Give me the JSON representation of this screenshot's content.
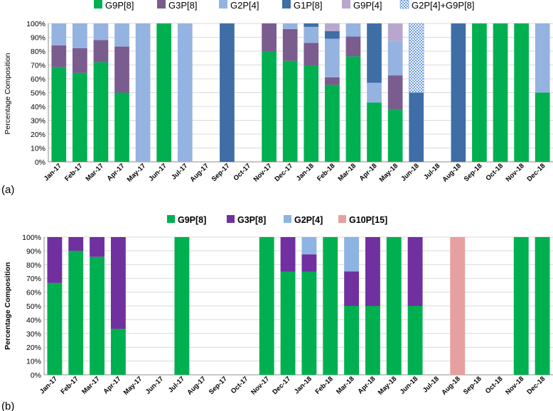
{
  "chart_data": [
    {
      "type": "bar",
      "stacked": true,
      "panel_label": "(a)",
      "title": "",
      "xlabel": "",
      "ylabel": "Percentage Composition",
      "ylim": [
        0,
        100
      ],
      "yticks": [
        "0%",
        "10%",
        "20%",
        "30%",
        "40%",
        "50%",
        "60%",
        "70%",
        "80%",
        "90%",
        "100%"
      ],
      "legend_position": "top",
      "categories": [
        "Jan-17",
        "Feb-17",
        "Mar-17",
        "Apr-17",
        "May-17",
        "Jun-17",
        "Jul-17",
        "Aug-17",
        "Sep-17",
        "Oct-17",
        "Nov-17",
        "Dec-17",
        "Jan-18",
        "Feb-18",
        "Mar-18",
        "Apr-18",
        "May-18",
        "Jun-18",
        "Jul-18",
        "Aug-18",
        "Sep-18",
        "Oct-18",
        "Nov-18",
        "Dec-18"
      ],
      "series": [
        {
          "name": "G9P[8]",
          "color": "#00b050",
          "values": [
            68.4,
            64.3,
            72,
            50,
            0,
            100,
            0,
            0,
            0,
            0,
            80,
            73,
            69.5,
            55.6,
            76.2,
            42.9,
            37.5,
            0,
            0,
            0,
            100,
            100,
            100,
            50
          ]
        },
        {
          "name": "G3P[8]",
          "color": "#7b5c8e",
          "values": [
            15.8,
            17.8,
            16,
            33.3,
            0,
            0,
            0,
            0,
            0,
            0,
            20,
            23,
            16.5,
            5.5,
            14.3,
            0,
            25,
            0,
            0,
            0,
            0,
            0,
            0,
            0
          ]
        },
        {
          "name": "G2P[4]",
          "color": "#95b3e0",
          "values": [
            15.8,
            17.9,
            12,
            16.7,
            100,
            0,
            100,
            0,
            0,
            0,
            0,
            4,
            11.5,
            27.8,
            9.5,
            14.2,
            25,
            0,
            0,
            0,
            0,
            0,
            0,
            50
          ]
        },
        {
          "name": "G1P[8]",
          "color": "#3f6ea6",
          "values": [
            0,
            0,
            0,
            0,
            0,
            0,
            0,
            0,
            100,
            0,
            0,
            0,
            2.5,
            5.6,
            0,
            42.9,
            0,
            50,
            0,
            100,
            0,
            0,
            0,
            0
          ]
        },
        {
          "name": "G9P[4]",
          "color": "#b9a6cf",
          "values": [
            0,
            0,
            0,
            0,
            0,
            0,
            0,
            0,
            0,
            0,
            0,
            0,
            0,
            5.5,
            0,
            0,
            12.5,
            0,
            0,
            0,
            0,
            0,
            0,
            0
          ]
        },
        {
          "name": "G2P[4]+G9P[8]",
          "color": "#6d9be0",
          "pattern": "checker",
          "values": [
            0,
            0,
            0,
            0,
            0,
            0,
            0,
            0,
            0,
            0,
            0,
            0,
            0,
            0,
            0,
            0,
            0,
            50,
            0,
            0,
            0,
            0,
            0,
            0
          ]
        }
      ]
    },
    {
      "type": "bar",
      "stacked": true,
      "panel_label": "(b)",
      "title": "",
      "xlabel": "",
      "ylabel": "Percentage Composition",
      "ylim": [
        0,
        100
      ],
      "yticks": [
        "0%",
        "10%",
        "20%",
        "30%",
        "40%",
        "50%",
        "60%",
        "70%",
        "80%",
        "90%",
        "100%"
      ],
      "legend_position": "top",
      "categories": [
        "Jan-17",
        "Feb-17",
        "Mar-17",
        "Apr-17",
        "May-17",
        "Jun-17",
        "Jul-17",
        "Aug-17",
        "Sep-17",
        "Oct-17",
        "Nov-17",
        "Dec-17",
        "Jan-18",
        "Feb-18",
        "Mar-18",
        "Apr-18",
        "May-18",
        "Jun-18",
        "Jul-18",
        "Aug-18",
        "Sep-18",
        "Oct-18",
        "Nov-18",
        "Dec-18"
      ],
      "series": [
        {
          "name": "G9P[8]",
          "color": "#00b050",
          "values": [
            66.7,
            90,
            85.7,
            33.3,
            0,
            0,
            100,
            0,
            0,
            0,
            100,
            75,
            75,
            100,
            50,
            50,
            100,
            50,
            0,
            0,
            0,
            0,
            100,
            100
          ]
        },
        {
          "name": "G3P[8]",
          "color": "#7030a0",
          "values": [
            33.3,
            10,
            14.3,
            66.7,
            0,
            0,
            0,
            0,
            0,
            0,
            0,
            25,
            12.5,
            0,
            25,
            50,
            0,
            50,
            0,
            0,
            0,
            0,
            0,
            0
          ]
        },
        {
          "name": "G2P[4]",
          "color": "#8db4e2",
          "values": [
            0,
            0,
            0,
            0,
            0,
            0,
            0,
            0,
            0,
            0,
            0,
            0,
            12.5,
            0,
            25,
            0,
            0,
            0,
            0,
            0,
            0,
            0,
            0,
            0
          ]
        },
        {
          "name": "G10P[15]",
          "color": "#e6a0a0",
          "values": [
            0,
            0,
            0,
            0,
            0,
            0,
            0,
            0,
            0,
            0,
            0,
            0,
            0,
            0,
            0,
            0,
            0,
            0,
            0,
            100,
            0,
            0,
            0,
            0
          ]
        }
      ]
    }
  ]
}
